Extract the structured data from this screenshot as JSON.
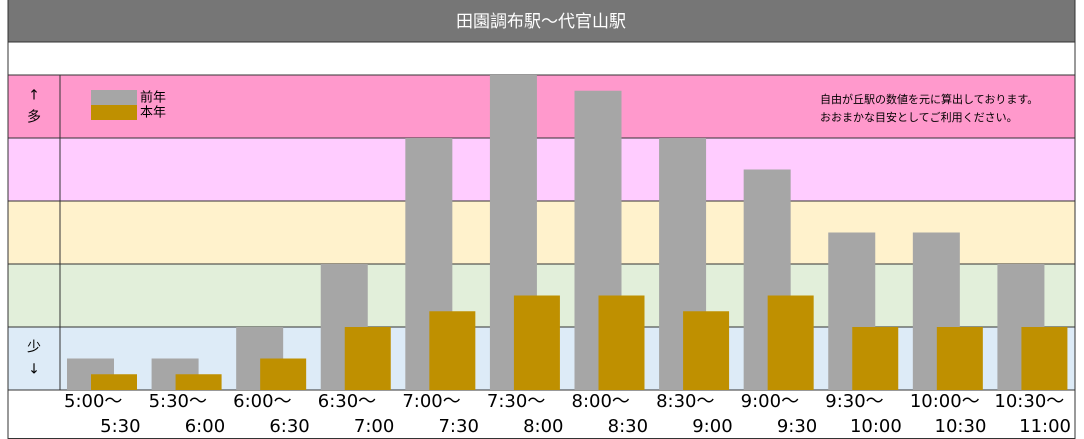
{
  "chart_data": {
    "type": "bar",
    "title": "田園調布駅～代官山駅",
    "annotation": [
      "自由が丘駅の数値を元に算出しております。",
      "おおまかな目安としてご利用ください。"
    ],
    "axis_labels": {
      "top": [
        "↑",
        "多"
      ],
      "bottom": [
        "少",
        "↓"
      ]
    },
    "categories": [
      [
        "5:00～",
        "5:30"
      ],
      [
        "5:30～",
        "6:00"
      ],
      [
        "6:00～",
        "6:30"
      ],
      [
        "6:30～",
        "7:00"
      ],
      [
        "7:00～",
        "7:30"
      ],
      [
        "7:30～",
        "8:00"
      ],
      [
        "8:00～",
        "8:30"
      ],
      [
        "8:30～",
        "9:00"
      ],
      [
        "9:00～",
        "9:30"
      ],
      [
        "9:30～",
        "10:00"
      ],
      [
        "10:00～",
        "10:30"
      ],
      [
        "10:30～",
        "11:00"
      ]
    ],
    "series": [
      {
        "name": "前年",
        "color": "#a6a6a6",
        "values": [
          0.5,
          0.5,
          1,
          2,
          4,
          5,
          4.75,
          4,
          3.5,
          2.5,
          2.5,
          2
        ]
      },
      {
        "name": "本年",
        "color": "#bf9000",
        "values": [
          0.25,
          0.25,
          0.5,
          1,
          1.25,
          1.5,
          1.5,
          1.25,
          1.5,
          1,
          1,
          1
        ]
      }
    ],
    "ylim": [
      0,
      5
    ],
    "yticks": [
      0,
      1,
      2,
      3,
      4,
      5
    ],
    "band_colors": [
      "#ddebf7",
      "#e2efda",
      "#fff2cc",
      "#ffccff",
      "#ff99cc"
    ]
  }
}
